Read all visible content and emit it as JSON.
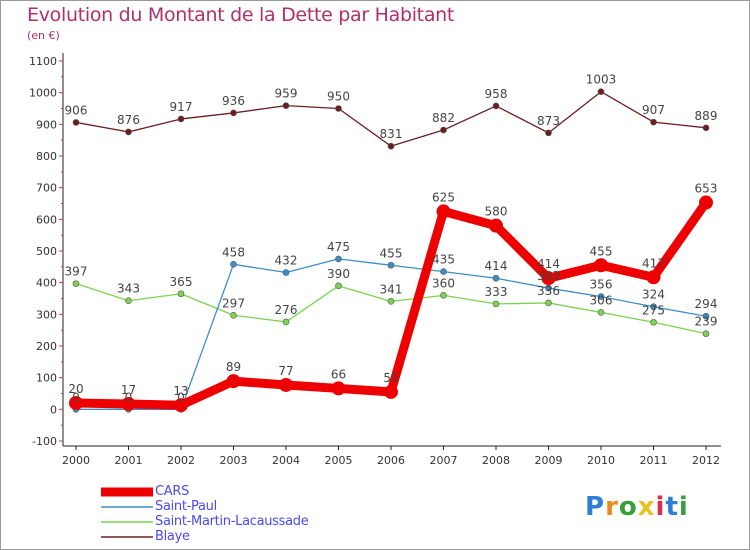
{
  "title": "Evolution du Montant de la Dette par Habitant",
  "unit_label": "(en €)",
  "logo": {
    "text": "Proxiti",
    "colors": [
      "#2e7fd6",
      "#e88c1e",
      "#3a9e3a",
      "#e8c21e",
      "#d6304a",
      "#2e7fd6",
      "#3a9e3a"
    ]
  },
  "chart_data": {
    "type": "line",
    "title": "Evolution du Montant de la Dette par Habitant",
    "ylabel": "(en €)",
    "xlabel": "",
    "ylim": [
      -100,
      1100
    ],
    "grid": false,
    "legend_position": "bottom-left",
    "categories": [
      "2000",
      "2001",
      "2002",
      "2003",
      "2004",
      "2005",
      "2006",
      "2007",
      "2008",
      "2009",
      "2010",
      "2011",
      "2012"
    ],
    "y_ticks": [
      "-100",
      "0",
      "100",
      "200",
      "300",
      "400",
      "500",
      "600",
      "700",
      "800",
      "900",
      "1000",
      "1100"
    ],
    "series": [
      {
        "name": "CARS",
        "color": "#ee0000",
        "values": [
          20,
          17,
          13,
          89,
          77,
          66,
          55,
          625,
          580,
          414,
          455,
          417,
          653
        ]
      },
      {
        "name": "Saint-Paul",
        "color": "#3d8ec8",
        "values": [
          0,
          0,
          0,
          458,
          432,
          475,
          455,
          435,
          414,
          383,
          356,
          324,
          294
        ]
      },
      {
        "name": "Saint-Martin-Lacaussade",
        "color": "#7dd350",
        "values": [
          397,
          343,
          365,
          297,
          276,
          390,
          341,
          360,
          333,
          336,
          306,
          275,
          239
        ]
      },
      {
        "name": "Blaye",
        "color": "#6b1e22",
        "values": [
          906,
          876,
          917,
          936,
          959,
          950,
          831,
          882,
          958,
          873,
          1003,
          907,
          889
        ]
      }
    ]
  }
}
